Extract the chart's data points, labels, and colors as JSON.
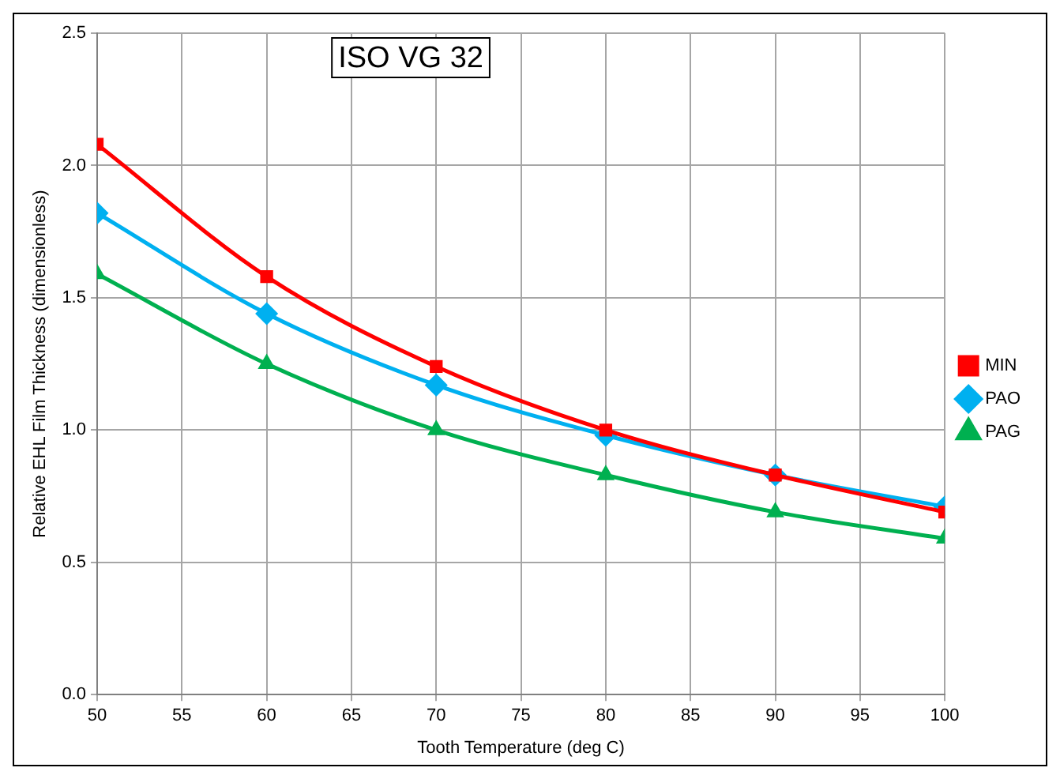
{
  "chart_data": {
    "type": "line",
    "title": "ISO VG 32",
    "xlabel": "Tooth Temperature (deg C)",
    "ylabel": "Relative EHL Film Thickness (dimensionless)",
    "x": [
      50,
      60,
      70,
      80,
      90,
      100
    ],
    "series": [
      {
        "name": "MIN",
        "color": "#ff0000",
        "marker": "square",
        "values": [
          2.08,
          1.58,
          1.24,
          1.0,
          0.83,
          0.69
        ]
      },
      {
        "name": "PAO",
        "color": "#00b0f0",
        "marker": "diamond",
        "values": [
          1.82,
          1.44,
          1.17,
          0.98,
          0.83,
          0.71
        ]
      },
      {
        "name": "PAG",
        "color": "#00b050",
        "marker": "triangle",
        "values": [
          1.59,
          1.25,
          1.0,
          0.83,
          0.69,
          0.59
        ]
      }
    ],
    "xlim": [
      50,
      100
    ],
    "xticks": [
      50,
      55,
      60,
      65,
      70,
      75,
      80,
      85,
      90,
      95,
      100
    ],
    "ylim": [
      0,
      2.5
    ],
    "yticks": [
      {
        "value": 0,
        "label": "0.0"
      },
      {
        "value": 0.5,
        "label": "0.5"
      },
      {
        "value": 1,
        "label": "1.0"
      },
      {
        "value": 1.5,
        "label": "1.5"
      },
      {
        "value": 2,
        "label": "2.0"
      },
      {
        "value": 2.5,
        "label": "2.5"
      }
    ],
    "grid": true,
    "legend": "right",
    "line_style": "solid"
  }
}
